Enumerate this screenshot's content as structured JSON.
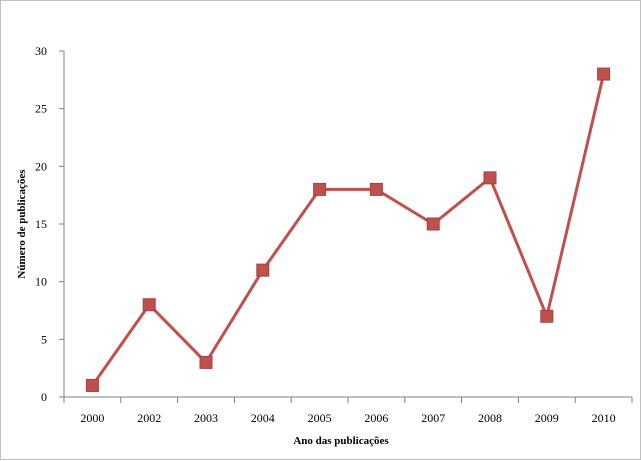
{
  "chart_data": {
    "type": "line",
    "title": "",
    "xlabel": "Ano das publicações",
    "ylabel": "Número de publicações",
    "categories": [
      "2000",
      "2002",
      "2003",
      "2004",
      "2005",
      "2006",
      "2007",
      "2008",
      "2009",
      "2010"
    ],
    "series": [
      {
        "values": [
          1,
          8,
          3,
          11,
          18,
          18,
          15,
          19,
          7,
          28
        ],
        "color": "#c0504d",
        "marker": "square"
      }
    ],
    "ylim": [
      0,
      30
    ],
    "yticks": [
      "0",
      "5",
      "10",
      "15",
      "20",
      "25",
      "30"
    ],
    "grid": false,
    "legend": "none"
  }
}
